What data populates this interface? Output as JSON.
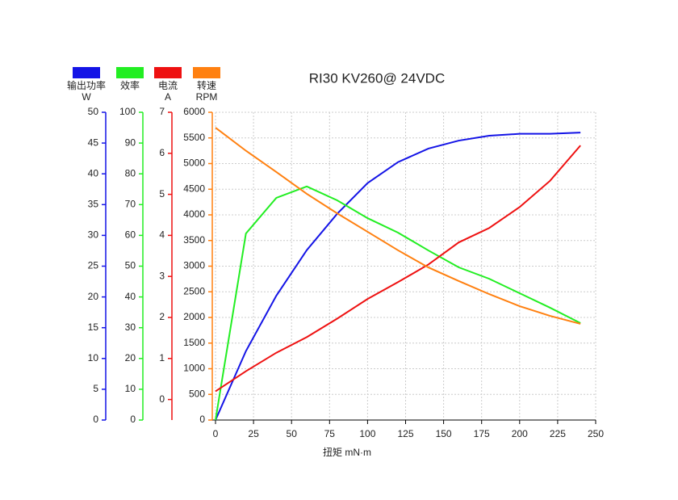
{
  "chart_data": {
    "type": "line",
    "title": "RI30 KV260@ 24VDC",
    "xlabel": "扭矩 mN·m",
    "x": [
      0,
      20,
      40,
      60,
      80,
      100,
      120,
      140,
      160,
      180,
      200,
      220,
      240
    ],
    "xlim": [
      0,
      250
    ],
    "xticks": [
      0,
      25,
      50,
      75,
      100,
      125,
      150,
      175,
      200,
      225,
      250
    ],
    "grid": true,
    "series": [
      {
        "name": "输出功率",
        "unit": "W",
        "color": "#1414e6",
        "values": [
          0,
          11.2,
          20.2,
          27.6,
          33.5,
          38.5,
          41.9,
          44.1,
          45.4,
          46.2,
          46.5,
          46.5,
          46.7
        ],
        "ylim": [
          0,
          50
        ],
        "yticks": [
          0,
          5,
          10,
          15,
          20,
          25,
          30,
          35,
          40,
          45,
          50
        ]
      },
      {
        "name": "效率",
        "color": "#22ee22",
        "values": [
          0,
          60.6,
          72.2,
          75.9,
          71.4,
          65.6,
          60.9,
          55.1,
          49.6,
          45.9,
          41.2,
          36.5,
          31.5
        ],
        "ylim": [
          0,
          100
        ],
        "yticks": [
          0,
          10,
          20,
          30,
          40,
          50,
          60,
          70,
          80,
          90,
          100
        ]
      },
      {
        "name": "电流",
        "unit": "A",
        "color": "#ee1111",
        "values": [
          0.2,
          0.69,
          1.14,
          1.52,
          1.97,
          2.45,
          2.86,
          3.29,
          3.83,
          4.18,
          4.69,
          5.33,
          6.19
        ],
        "ylim": [
          -0.5,
          7
        ],
        "yticks": [
          0,
          1,
          2,
          3,
          4,
          5,
          6,
          7
        ]
      },
      {
        "name": "转速",
        "unit": "RPM",
        "color": "#ff8010",
        "values": [
          5700,
          5250,
          4835,
          4410,
          4030,
          3670,
          3310,
          2975,
          2710,
          2455,
          2220,
          2030,
          1875
        ],
        "ylim": [
          0,
          6000
        ],
        "yticks": [
          0,
          500,
          1000,
          1500,
          2000,
          2500,
          3000,
          3500,
          4000,
          4500,
          5000,
          5500,
          6000
        ]
      }
    ]
  }
}
